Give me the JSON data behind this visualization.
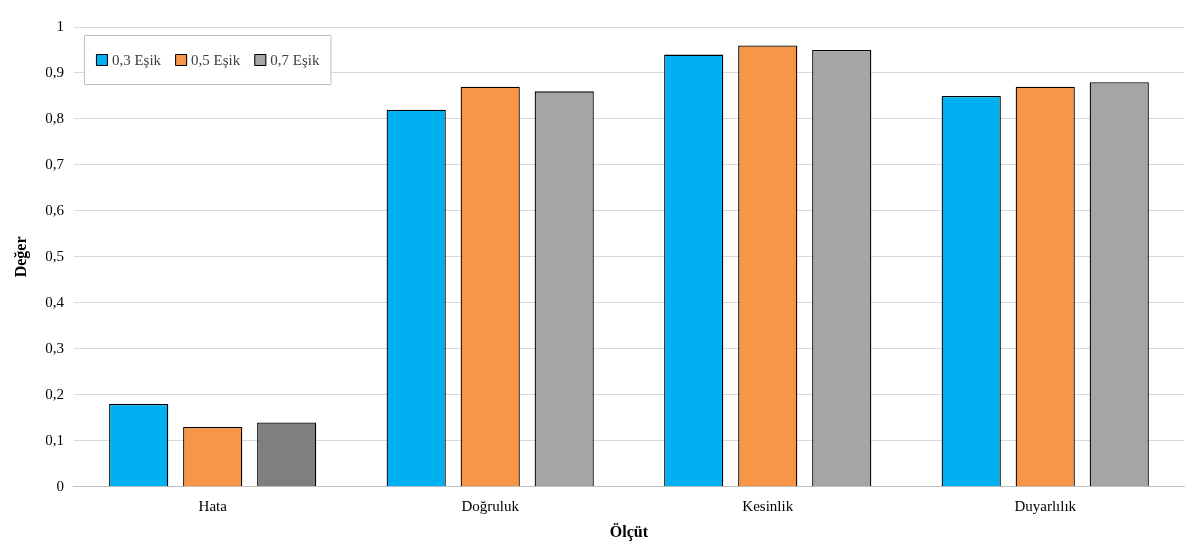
{
  "chart_data": {
    "type": "bar",
    "xlabel": "Ölçüt",
    "ylabel": "Değer",
    "categories": [
      "Hata",
      "Doğruluk",
      "Kesinlik",
      "Duyarlılık"
    ],
    "series": [
      {
        "name": "0,3 Eşik",
        "color": "#00b0f0",
        "values": [
          0.18,
          0.82,
          0.94,
          0.85
        ]
      },
      {
        "name": "0,5 Eşik",
        "color": "#f79646",
        "values": [
          0.13,
          0.87,
          0.96,
          0.87
        ]
      },
      {
        "name": "0,7 Eşik",
        "color": "#a5a5a5",
        "colors": [
          "#7f7f7f",
          "#a5a5a5",
          "#a5a5a5",
          "#a5a5a5"
        ],
        "values": [
          0.14,
          0.86,
          0.95,
          0.88
        ]
      }
    ],
    "ylim": [
      0,
      1
    ],
    "yticks": [
      0,
      {
        "value": 0.1,
        "label": "0,1"
      },
      {
        "value": 0.2,
        "label": "0,2"
      },
      {
        "value": 0.3,
        "label": "0,3"
      },
      {
        "value": 0.4,
        "label": "0,4"
      },
      {
        "value": 0.5,
        "label": "0,5"
      },
      {
        "value": 0.6,
        "label": "0,6"
      },
      {
        "value": 0.7,
        "label": "0,7"
      },
      {
        "value": 0.8,
        "label": "0,8"
      },
      {
        "value": 0.9,
        "label": "0,9"
      },
      1
    ],
    "grid": "y",
    "legend": "top left"
  }
}
